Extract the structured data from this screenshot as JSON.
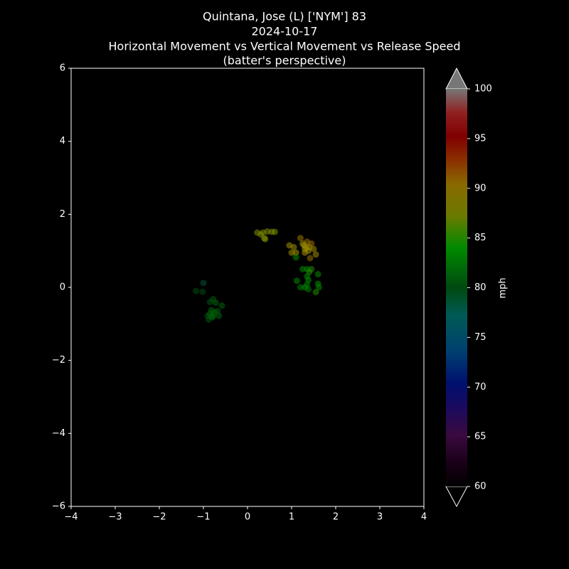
{
  "chart_data": {
    "type": "scatter",
    "title": [
      "Quintana, Jose (L) ['NYM'] 83",
      "2024-10-17",
      "Horizontal Movement vs Vertical Movement vs Release Speed",
      "(batter's perspective)"
    ],
    "x": [
      0.22,
      0.3,
      0.35,
      0.4,
      0.45,
      0.55,
      0.62,
      0.38,
      0.95,
      1.05,
      1.0,
      1.1,
      1.2,
      1.25,
      1.3,
      1.35,
      1.4,
      1.45,
      1.3,
      1.5,
      1.55,
      1.42,
      1.38,
      1.28,
      1.33,
      1.1,
      1.25,
      1.35,
      1.4,
      1.45,
      1.6,
      1.12,
      1.35,
      1.38,
      1.35,
      1.6,
      1.62,
      1.2,
      1.3,
      1.38,
      1.55,
      -1.0,
      -1.17,
      -1.02,
      -0.85,
      -0.78,
      -0.72,
      -0.58,
      -0.82,
      -0.75,
      -0.68,
      -0.9,
      -0.85,
      -0.78,
      -0.65,
      -0.88,
      -0.8
    ],
    "values": [
      1.5,
      1.45,
      1.5,
      1.32,
      1.53,
      1.52,
      1.52,
      1.35,
      1.15,
      1.1,
      0.95,
      0.95,
      1.35,
      1.2,
      1.05,
      1.25,
      1.1,
      1.2,
      0.95,
      1.05,
      0.9,
      0.8,
      1.0,
      1.15,
      1.1,
      0.82,
      0.5,
      0.5,
      0.42,
      0.5,
      0.36,
      0.18,
      0.3,
      0.2,
      0.08,
      0.1,
      0.0,
      0.0,
      0.0,
      -0.05,
      -0.13,
      0.12,
      -0.1,
      -0.12,
      -0.4,
      -0.32,
      -0.42,
      -0.5,
      -0.62,
      -0.68,
      -0.65,
      -0.78,
      -0.72,
      -0.78,
      -0.78,
      -0.88,
      -0.82
    ],
    "color_values": [
      89,
      89,
      89,
      89,
      89,
      89,
      89,
      89,
      90,
      90,
      90,
      90,
      91,
      90,
      90,
      91,
      90,
      91,
      90,
      90,
      90,
      91,
      90,
      90,
      90,
      85,
      85,
      85,
      86,
      86,
      85,
      85,
      85,
      85,
      84,
      85,
      85,
      84,
      85,
      84,
      86,
      77,
      80,
      80,
      81,
      81,
      82,
      82,
      82,
      82,
      82,
      81,
      82,
      82,
      82,
      81,
      82
    ],
    "xlim": [
      -4,
      4
    ],
    "ylim": [
      -6,
      6
    ],
    "xticks": [
      {
        "value": -4,
        "label": "−4"
      },
      {
        "value": -3,
        "label": "−3"
      },
      {
        "value": -2,
        "label": "−2"
      },
      {
        "value": -1,
        "label": "−1"
      },
      0,
      1,
      2,
      3,
      4
    ],
    "yticks": [
      {
        "value": -6,
        "label": "−6"
      },
      {
        "value": -4,
        "label": "−4"
      },
      {
        "value": -2,
        "label": "−2"
      },
      0,
      2,
      4,
      6
    ],
    "clim": [
      60,
      100
    ],
    "cticks": [
      60,
      65,
      70,
      75,
      80,
      85,
      90,
      95,
      100
    ],
    "colorbar_label": "mph"
  }
}
